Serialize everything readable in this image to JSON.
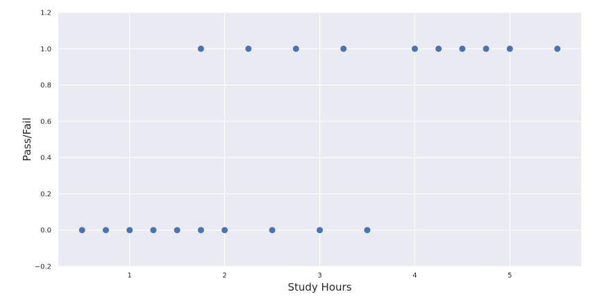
{
  "chart_data": {
    "type": "scatter",
    "title": "",
    "xlabel": "Study Hours",
    "ylabel": "Pass/Fail",
    "xlim": [
      0.25,
      5.75
    ],
    "ylim": [
      -0.2,
      1.2
    ],
    "xticks": [
      1,
      2,
      3,
      4,
      5
    ],
    "xtick_labels": [
      "1",
      "2",
      "3",
      "4",
      "5"
    ],
    "yticks": [
      -0.2,
      0.0,
      0.2,
      0.4,
      0.6,
      0.8,
      1.0,
      1.2
    ],
    "ytick_labels": [
      "−0.2",
      "0.0",
      "0.2",
      "0.4",
      "0.6",
      "0.8",
      "1.0",
      "1.2"
    ],
    "grid": true,
    "colors": {
      "background": "#eaeaf2",
      "grid": "#ffffff",
      "marker": "#4c72b0"
    },
    "points": [
      {
        "x": 0.5,
        "y": 0
      },
      {
        "x": 0.75,
        "y": 0
      },
      {
        "x": 1.0,
        "y": 0
      },
      {
        "x": 1.25,
        "y": 0
      },
      {
        "x": 1.5,
        "y": 0
      },
      {
        "x": 1.75,
        "y": 0
      },
      {
        "x": 1.75,
        "y": 1
      },
      {
        "x": 2.0,
        "y": 0
      },
      {
        "x": 2.25,
        "y": 1
      },
      {
        "x": 2.5,
        "y": 0
      },
      {
        "x": 2.75,
        "y": 1
      },
      {
        "x": 3.0,
        "y": 0
      },
      {
        "x": 3.25,
        "y": 1
      },
      {
        "x": 3.5,
        "y": 0
      },
      {
        "x": 4.0,
        "y": 1
      },
      {
        "x": 4.25,
        "y": 1
      },
      {
        "x": 4.5,
        "y": 1
      },
      {
        "x": 4.75,
        "y": 1
      },
      {
        "x": 5.0,
        "y": 1
      },
      {
        "x": 5.5,
        "y": 1
      }
    ]
  }
}
